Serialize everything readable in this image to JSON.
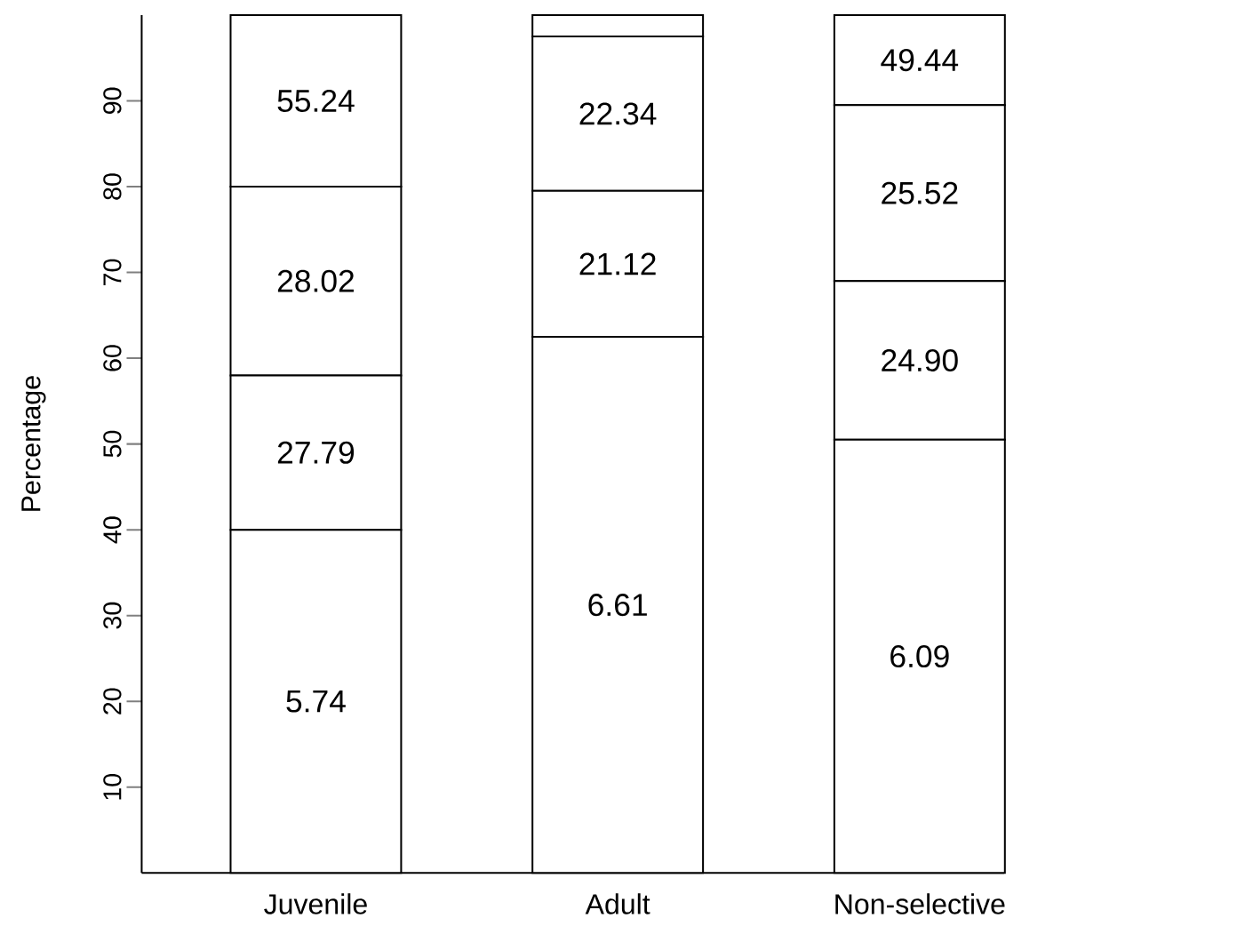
{
  "chart_data": {
    "type": "bar",
    "stacked": true,
    "ylabel": "Percentage",
    "categories": [
      "Juvenile",
      "Adult",
      "Non-selective"
    ],
    "ylim": [
      0,
      100
    ],
    "yticks": [
      10,
      20,
      30,
      40,
      50,
      60,
      70,
      80,
      90
    ],
    "series": [
      {
        "color": "#ffffff",
        "values": [
          40,
          62.5,
          50.5
        ]
      },
      {
        "color": "#ffffff",
        "values": [
          18,
          17,
          18.5
        ]
      },
      {
        "color": "#ffffff",
        "values": [
          22,
          18,
          20.5
        ]
      },
      {
        "color": "#ffffff",
        "values": [
          20,
          2.5,
          10.5
        ]
      }
    ],
    "annotations": [
      "5.74",
      "6.61",
      "6.09",
      "27.79",
      "21.12",
      "24.90",
      "28.02",
      "22.34",
      "25.52",
      "55.24",
      "49.44"
    ]
  }
}
